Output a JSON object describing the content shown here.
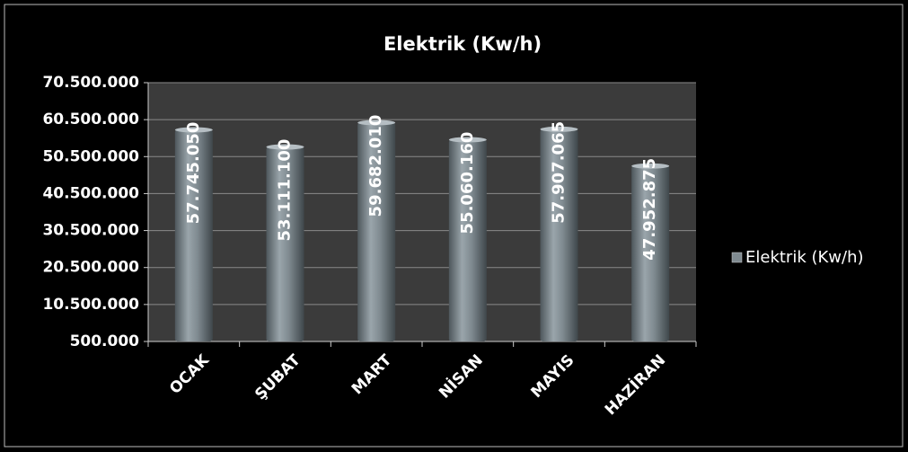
{
  "chart_data": {
    "type": "bar",
    "title": "Elektrik (Kw/h)",
    "categories": [
      "OCAK",
      "ŞUBAT",
      "MART",
      "NİSAN",
      "MAYIS",
      "HAZİRAN"
    ],
    "series": [
      {
        "name": "Elektrik (Kw/h)",
        "color": "#7f8a90",
        "values": [
          57745050,
          53111100,
          59682010,
          55060160,
          57907065,
          47952875
        ],
        "value_labels": [
          "57.745.050",
          "53.111.100",
          "59.682.010",
          "55.060.160",
          "57.907.065",
          "47.952.875"
        ]
      }
    ],
    "ylim": [
      500000,
      70500000
    ],
    "yticks": [
      {
        "value": 500000,
        "label": "500.000"
      },
      {
        "value": 10500000,
        "label": "10.500.000"
      },
      {
        "value": 20500000,
        "label": "20.500.000"
      },
      {
        "value": 30500000,
        "label": "30.500.000"
      },
      {
        "value": 40500000,
        "label": "40.500.000"
      },
      {
        "value": 50500000,
        "label": "50.500.000"
      },
      {
        "value": 60500000,
        "label": "60.500.000"
      },
      {
        "value": 70500000,
        "label": "70.500.000"
      }
    ],
    "grid": true,
    "legend": "right"
  }
}
